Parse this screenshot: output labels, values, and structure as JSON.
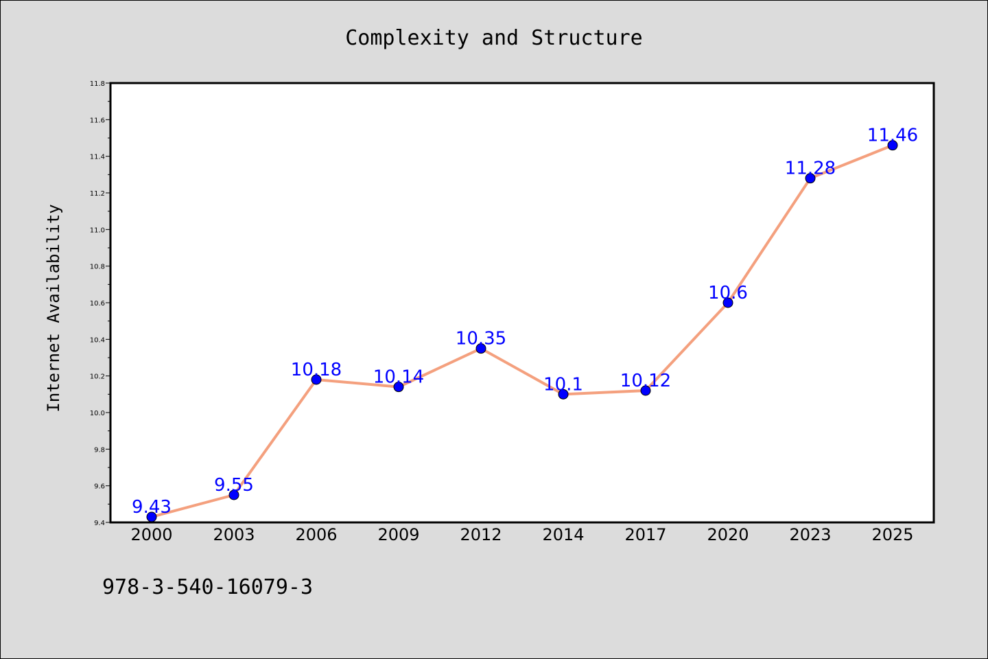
{
  "chart_data": {
    "type": "line",
    "title": "Complexity and Structure",
    "xlabel": "",
    "ylabel": "Internet Availability",
    "categories": [
      "2000",
      "2003",
      "2006",
      "2009",
      "2012",
      "2014",
      "2017",
      "2020",
      "2023",
      "2025"
    ],
    "series": [
      {
        "values": [
          9.43,
          9.55,
          10.18,
          10.14,
          10.35,
          10.1,
          10.12,
          10.6,
          11.28,
          11.46
        ],
        "data_labels": [
          "9.43",
          "9.55",
          "10.18",
          "10.14",
          "10.35",
          "10.1",
          "10.12",
          "10.6",
          "11.28",
          "11.46"
        ]
      }
    ],
    "ylim": [
      9.4,
      11.8
    ],
    "yticks": [
      "9.4",
      "9.6",
      "9.8",
      "10.0",
      "10.2",
      "10.4",
      "10.6",
      "10.8",
      "11.0",
      "11.2",
      "11.4",
      "11.6",
      "11.8"
    ],
    "grid": false,
    "legend": "none",
    "colors": {
      "line": "#f4a07e",
      "marker": "#0000ff",
      "data_label": "#0000ff",
      "background": "#dcdcdc",
      "plot_background": "#ffffff"
    }
  },
  "footer": {
    "isbn": "978-3-540-16079-3"
  }
}
